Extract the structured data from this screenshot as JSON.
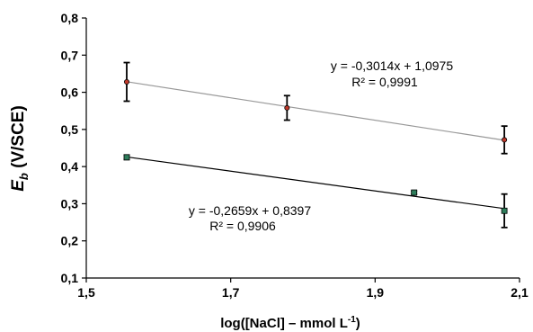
{
  "chart_data": {
    "type": "scatter",
    "xlabel": "log([NaCl] – mmol L",
    "xlabel_sup": "-1",
    "xlabel_close": ")",
    "ylabel_main": "E",
    "ylabel_sub": "b",
    "ylabel_unit": " (V/SCE)",
    "xlim": [
      1.5,
      2.1
    ],
    "ylim": [
      0.1,
      0.8
    ],
    "xticks": [
      1.5,
      1.7,
      1.9,
      2.1
    ],
    "xtick_labels": [
      "1,5",
      "1,7",
      "1,9",
      "2,1"
    ],
    "yticks": [
      0.1,
      0.2,
      0.3,
      0.4,
      0.5,
      0.6,
      0.7,
      0.8
    ],
    "ytick_labels": [
      "0,1",
      "0,2",
      "0,3",
      "0,4",
      "0,5",
      "0,6",
      "0,7",
      "0,8"
    ],
    "grid": false,
    "series": [
      {
        "marker": "circle",
        "marker_fill": "#c0392b",
        "line_color": "#999999",
        "x": [
          1.556,
          1.778,
          2.079
        ],
        "y": [
          0.628,
          0.558,
          0.472
        ],
        "err": [
          0.052,
          0.033,
          0.037
        ],
        "fit_slope": -0.3014,
        "fit_intercept": 1.0975,
        "equation": "y = -0,3014x + 1,0975",
        "r2": "R² = 0,9991"
      },
      {
        "marker": "square",
        "marker_fill": "#2e7d5b",
        "line_color": "#000000",
        "x": [
          1.556,
          1.954,
          2.079
        ],
        "y": [
          0.425,
          0.33,
          0.281
        ],
        "err": [
          0.006,
          0.004,
          0.045
        ],
        "fit_slope": -0.2659,
        "fit_intercept": 0.8397,
        "equation": "y = -0,2659x + 0,8397",
        "r2": "R² = 0,9906"
      }
    ]
  }
}
